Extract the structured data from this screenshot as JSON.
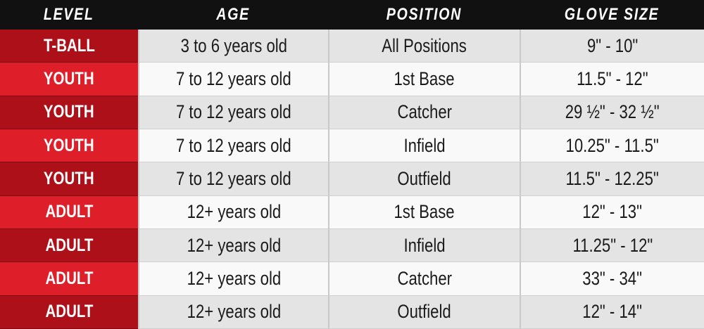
{
  "header": {
    "columns": [
      "LEVEL",
      "AGE",
      "POSITION",
      "GLOVE SIZE"
    ]
  },
  "table": {
    "rows": [
      [
        "T-BALL",
        "3 to 6 years old",
        "All Positions",
        "9\" - 10\""
      ],
      [
        "YOUTH",
        "7 to 12 years old",
        "1st Base",
        "11.5\" - 12\""
      ],
      [
        "YOUTH",
        "7 to 12 years old",
        "Catcher",
        "29 ½\" - 32 ½\""
      ],
      [
        "YOUTH",
        "7 to 12 years old",
        "Infield",
        "10.25\" - 11.5\""
      ],
      [
        "YOUTH",
        "7 to 12 years old",
        "Outfield",
        "11.5\" - 12.25\""
      ],
      [
        "ADULT",
        "12+ years old",
        "1st Base",
        "12\" - 13\""
      ],
      [
        "ADULT",
        "12+ years old",
        "Infield",
        "11.25\" - 12\""
      ],
      [
        "ADULT",
        "12+ years old",
        "Catcher",
        "33\" - 34\""
      ],
      [
        "ADULT",
        "12+ years old",
        "Outfield",
        "12\" - 14\""
      ]
    ]
  }
}
